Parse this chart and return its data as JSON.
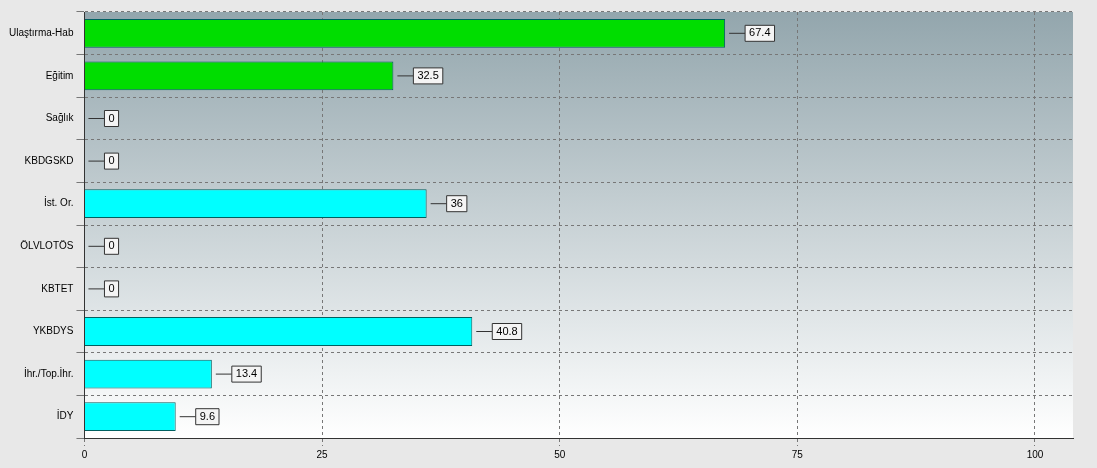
{
  "chart_data": {
    "type": "bar",
    "orientation": "horizontal",
    "categories": [
      "Ulaştırma-Hab",
      "Eğitim",
      "Sağlık",
      "KBDGSKD",
      "İst. Or.",
      "ÖLVLOTÖS",
      "KBTET",
      "YKBDYS",
      "İhr./Top.İhr.",
      "İDY"
    ],
    "values": [
      67.4,
      32.5,
      0,
      0,
      36,
      0,
      0,
      40.8,
      13.4,
      9.6
    ],
    "colors": [
      "#00dd00",
      "#00dd00",
      "#00dd00",
      "#00c8c8",
      "#00ffff",
      "#00c8c8",
      "#00c8c8",
      "#00ffff",
      "#00ffff",
      "#00ffff"
    ],
    "xlim": [
      0,
      104
    ],
    "xticks": [
      0,
      25,
      50,
      75,
      100
    ],
    "grid": true,
    "data_labels": true
  }
}
